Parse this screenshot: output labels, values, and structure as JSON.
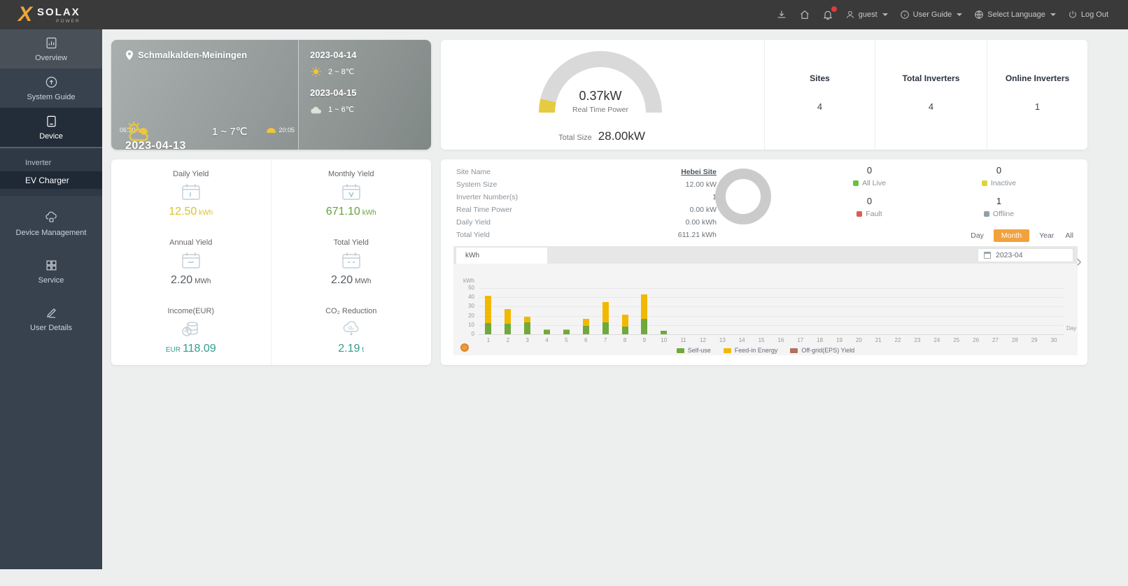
{
  "topbar": {
    "logo_primary": "SOLAX",
    "logo_secondary": "POWER",
    "user_name": "guest",
    "user_guide_label": "User Guide",
    "language_label": "Select Language",
    "logout_label": "Log Out"
  },
  "sidebar": {
    "items": [
      {
        "label": "Overview"
      },
      {
        "label": "System Guide"
      },
      {
        "label": "Device"
      },
      {
        "label": "Device Management"
      },
      {
        "label": "Service"
      },
      {
        "label": "User Details"
      }
    ],
    "submenu": [
      {
        "label": "Inverter"
      },
      {
        "label": "EV Charger"
      }
    ]
  },
  "weather": {
    "location": "Schmalkalden-Meiningen",
    "sunrise": "06:30",
    "sunset": "20:05",
    "date": "2023-04-13",
    "temp": "1 ~ 7℃",
    "forecast": [
      {
        "date": "2023-04-14",
        "temp": "2 ~ 8℃"
      },
      {
        "date": "2023-04-15",
        "temp": "1 ~ 6℃"
      }
    ]
  },
  "summary": {
    "power_value": "0.37kW",
    "power_label": "Real Time Power",
    "total_size_label": "Total Size",
    "total_size_value": "28.00kW",
    "stats": [
      {
        "label": "Sites",
        "value": "4"
      },
      {
        "label": "Total Inverters",
        "value": "4"
      },
      {
        "label": "Online Inverters",
        "value": "1"
      }
    ]
  },
  "yields": {
    "items": [
      {
        "label": "Daily Yield",
        "prefix": "",
        "value": "12.50",
        "unit": "kWh",
        "color": "#d9c22a"
      },
      {
        "label": "Monthly Yield",
        "prefix": "",
        "value": "671.10",
        "unit": "kWh",
        "color": "#67a23a"
      },
      {
        "label": "Annual Yield",
        "prefix": "",
        "value": "2.20",
        "unit": "MWh",
        "color": "#555b60"
      },
      {
        "label": "Total Yield",
        "prefix": "",
        "value": "2.20",
        "unit": "MWh",
        "color": "#555b60"
      },
      {
        "label": "Income(EUR)",
        "prefix": "EUR",
        "value": "118.09",
        "unit": "",
        "color": "#2f9e8f"
      },
      {
        "label": "CO₂ Reduction",
        "prefix": "",
        "value": "2.19",
        "unit": "t",
        "color": "#2f9e8f"
      }
    ]
  },
  "site": {
    "fields": [
      {
        "label": "Site Name",
        "value": "Hebei Site"
      },
      {
        "label": "System Size",
        "value": "12.00 kW"
      },
      {
        "label": "Inverter Number(s)",
        "value": "1"
      },
      {
        "label": "Real Time Power",
        "value": "0.00 kW"
      },
      {
        "label": "Daily Yield",
        "value": "0.00 kWh"
      },
      {
        "label": "Total Yield",
        "value": "611.21 kWh"
      }
    ],
    "statuses": [
      {
        "label": "All Live",
        "value": "0",
        "color": "#67c23a"
      },
      {
        "label": "Inactive",
        "value": "0",
        "color": "#ddd23a"
      },
      {
        "label": "Fault",
        "value": "0",
        "color": "#e05b52"
      },
      {
        "label": "Offline",
        "value": "1",
        "color": "#93a0a8"
      }
    ],
    "range_buttons": [
      "Day",
      "Month",
      "Year",
      "All"
    ],
    "active_range": "Month",
    "date_value": "2023-04",
    "tab_label": "kWh"
  },
  "icons": {
    "chevron_next": "›"
  },
  "chart_data": {
    "type": "bar",
    "stacked": true,
    "unit": "kWh",
    "xlabel": "Day",
    "ylim": [
      0,
      50
    ],
    "yticks": [
      0,
      10,
      20,
      30,
      40,
      50
    ],
    "legend_position": "bottom",
    "x": [
      1,
      2,
      3,
      4,
      5,
      6,
      7,
      8,
      9,
      10,
      11,
      12,
      13,
      14,
      15,
      16,
      17,
      18,
      19,
      20,
      21,
      22,
      23,
      24,
      25,
      26,
      27,
      28,
      29,
      30
    ],
    "series": [
      {
        "name": "Self-use",
        "color": "#6fa93c",
        "values": [
          12,
          11,
          13,
          4.5,
          4.5,
          9,
          13,
          8.5,
          17,
          3.5,
          0,
          0,
          0,
          0,
          0,
          0,
          0,
          0,
          0,
          0,
          0,
          0,
          0,
          0,
          0,
          0,
          0,
          0,
          0,
          0
        ]
      },
      {
        "name": "Feed-in Energy",
        "color": "#f2b800",
        "values": [
          30,
          16,
          6,
          1,
          0.5,
          8,
          22,
          12.5,
          26,
          0,
          0,
          0,
          0,
          0,
          0,
          0,
          0,
          0,
          0,
          0,
          0,
          0,
          0,
          0,
          0,
          0,
          0,
          0,
          0,
          0
        ]
      },
      {
        "name": "Off-grid(EPS) Yield",
        "color": "#b4705d",
        "values": [
          0,
          0,
          0,
          0,
          0,
          0,
          0,
          0,
          0,
          0,
          0,
          0,
          0,
          0,
          0,
          0,
          0,
          0,
          0,
          0,
          0,
          0,
          0,
          0,
          0,
          0,
          0,
          0,
          0,
          0
        ]
      }
    ]
  }
}
